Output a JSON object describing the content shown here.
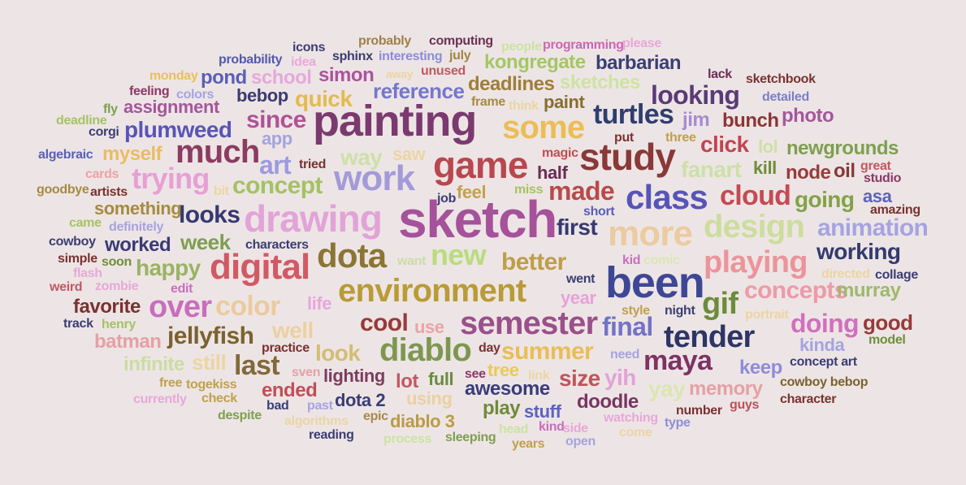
{
  "cloud": {
    "words": [
      {
        "text": "sketch",
        "color": "#a5529a"
      },
      {
        "text": "painting",
        "color": "#7b3a6f"
      },
      {
        "text": "been",
        "color": "#3e4795"
      },
      {
        "text": "study",
        "color": "#8a3838"
      },
      {
        "text": "drawing",
        "color": "#e2a3d8"
      },
      {
        "text": "game",
        "color": "#b9474f"
      },
      {
        "text": "work",
        "color": "#a39ad9"
      },
      {
        "text": "much",
        "color": "#8c3b61"
      },
      {
        "text": "more",
        "color": "#ebcba0"
      },
      {
        "text": "design",
        "color": "#cddd9c"
      },
      {
        "text": "environment",
        "color": "#b99b37"
      },
      {
        "text": "digital",
        "color": "#d25964"
      },
      {
        "text": "dota",
        "color": "#8b7535"
      },
      {
        "text": "class",
        "color": "#5754b9"
      },
      {
        "text": "semester",
        "color": "#9b4f8b"
      },
      {
        "text": "some",
        "color": "#ebbd55"
      },
      {
        "text": "made",
        "color": "#b74b4b"
      },
      {
        "text": "playing",
        "color": "#ec949b"
      },
      {
        "text": "tender",
        "color": "#2d3565"
      },
      {
        "text": "diablo",
        "color": "#7e9750"
      },
      {
        "text": "gif",
        "color": "#6b8c3c"
      },
      {
        "text": "new",
        "color": "#b9dc7d"
      },
      {
        "text": "over",
        "color": "#c86ebd"
      },
      {
        "text": "color",
        "color": "#ebcaa0"
      },
      {
        "text": "maya",
        "color": "#7e3263"
      },
      {
        "text": "cloud",
        "color": "#c54a54"
      },
      {
        "text": "trying",
        "color": "#e79fd5"
      },
      {
        "text": "turtles",
        "color": "#2f3e6f"
      },
      {
        "text": "looking",
        "color": "#5a3a78"
      },
      {
        "text": "summer",
        "color": "#e8be55"
      },
      {
        "text": "art",
        "color": "#9d9ae0"
      },
      {
        "text": "concept",
        "color": "#a3c264"
      },
      {
        "text": "last",
        "color": "#80693b"
      },
      {
        "text": "final",
        "color": "#7373c7"
      },
      {
        "text": "jellyfish",
        "color": "#7a6230"
      },
      {
        "text": "better",
        "color": "#c09d49"
      },
      {
        "text": "animation",
        "color": "#a6a3e1"
      },
      {
        "text": "concepts",
        "color": "#ed9aa9"
      },
      {
        "text": "going",
        "color": "#82a248"
      },
      {
        "text": "plumweed",
        "color": "#5954b7"
      },
      {
        "text": "looks",
        "color": "#363970"
      },
      {
        "text": "cool",
        "color": "#983a3a"
      },
      {
        "text": "doing",
        "color": "#d36fbe"
      },
      {
        "text": "quick",
        "color": "#e3ba50"
      },
      {
        "text": "since",
        "color": "#b05296"
      },
      {
        "text": "reference",
        "color": "#7477ca"
      },
      {
        "text": "first",
        "color": "#363870"
      },
      {
        "text": "size",
        "color": "#c0545b"
      },
      {
        "text": "fanart",
        "color": "#cde0a7"
      },
      {
        "text": "week",
        "color": "#7e9f51"
      },
      {
        "text": "happy",
        "color": "#9ab263"
      },
      {
        "text": "well",
        "color": "#ebd0a1"
      },
      {
        "text": "look",
        "color": "#d3bd72"
      },
      {
        "text": "working",
        "color": "#353a6e"
      },
      {
        "text": "newgrounds",
        "color": "#7e9f51"
      },
      {
        "text": "murray",
        "color": "#9cba6a"
      },
      {
        "text": "bunch",
        "color": "#8b3636"
      },
      {
        "text": "photo",
        "color": "#a4579c"
      },
      {
        "text": "way",
        "color": "#cee0a7"
      },
      {
        "text": "memory",
        "color": "#e5a0a6"
      },
      {
        "text": "yih",
        "color": "#e2a2d8"
      },
      {
        "text": "good",
        "color": "#973a3a"
      },
      {
        "text": "infinite",
        "color": "#ccdca4"
      },
      {
        "text": "lighting",
        "color": "#7c3d61"
      },
      {
        "text": "tree",
        "color": "#ebc957"
      },
      {
        "text": "half",
        "color": "#6a2d55"
      },
      {
        "text": "year",
        "color": "#e8a0d9"
      },
      {
        "text": "yay",
        "color": "#dbe6b1"
      },
      {
        "text": "doodle",
        "color": "#7a3463"
      },
      {
        "text": "awesome",
        "color": "#3a3d7a"
      },
      {
        "text": "still",
        "color": "#ebd5a4"
      },
      {
        "text": "sketches",
        "color": "#cde4a1"
      },
      {
        "text": "deadlines",
        "color": "#9e7e3b"
      },
      {
        "text": "barbarian",
        "color": "#3a3f75"
      },
      {
        "text": "school",
        "color": "#e5a8dc"
      },
      {
        "text": "click",
        "color": "#bf4552"
      },
      {
        "text": "something",
        "color": "#a58a44"
      },
      {
        "text": "favorite",
        "color": "#7b3131"
      },
      {
        "text": "kongregate",
        "color": "#a5c664"
      },
      {
        "text": "simon",
        "color": "#ae529e"
      },
      {
        "text": "pond",
        "color": "#5a5fb7"
      },
      {
        "text": "assignment",
        "color": "#a4579c"
      },
      {
        "text": "myself",
        "color": "#eabc63"
      },
      {
        "text": "worked",
        "color": "#3a3b74"
      },
      {
        "text": "batman",
        "color": "#e5a0a6"
      },
      {
        "text": "bebop",
        "color": "#3c3a70"
      },
      {
        "text": "paint",
        "color": "#8a6d30"
      },
      {
        "text": "jim",
        "color": "#a68cd1"
      },
      {
        "text": "kill",
        "color": "#6e8f3c"
      },
      {
        "text": "node",
        "color": "#983c3c"
      },
      {
        "text": "oil",
        "color": "#873838"
      },
      {
        "text": "asa",
        "color": "#5d62b8"
      },
      {
        "text": "kinda",
        "color": "#a6a3e1"
      },
      {
        "text": "keep",
        "color": "#8f8bda"
      },
      {
        "text": "dota 2",
        "color": "#3a3d75"
      },
      {
        "text": "diablo 3",
        "color": "#bb9b47"
      },
      {
        "text": "lot",
        "color": "#c05863"
      },
      {
        "text": "full",
        "color": "#6c8c3f"
      },
      {
        "text": "ended",
        "color": "#c24e57"
      },
      {
        "text": "using",
        "color": "#ebd0a1"
      },
      {
        "text": "play",
        "color": "#6f8a3d"
      },
      {
        "text": "stuff",
        "color": "#5d63bd"
      },
      {
        "text": "use",
        "color": "#eba3a6"
      },
      {
        "text": "feel",
        "color": "#c2a24e"
      },
      {
        "text": "saw",
        "color": "#ebd5a4"
      },
      {
        "text": "app",
        "color": "#a5a2e0"
      },
      {
        "text": "lol",
        "color": "#cde0a3"
      },
      {
        "text": "life",
        "color": "#e8a5dc"
      },
      {
        "text": "probably",
        "color": "#9f8047"
      },
      {
        "text": "computing",
        "color": "#6b2f55"
      },
      {
        "text": "icons",
        "color": "#3c3d75"
      },
      {
        "text": "people",
        "color": "#cce2a3"
      },
      {
        "text": "programming",
        "color": "#d064b5"
      },
      {
        "text": "please",
        "color": "#e8a7d9"
      },
      {
        "text": "probability",
        "color": "#5158b0"
      },
      {
        "text": "idea",
        "color": "#e9a8dc"
      },
      {
        "text": "sphinx",
        "color": "#3a3d75"
      },
      {
        "text": "interesting",
        "color": "#8c8cd8"
      },
      {
        "text": "july",
        "color": "#a08544"
      },
      {
        "text": "monday",
        "color": "#e8c060"
      },
      {
        "text": "away",
        "color": "#ebd5a4"
      },
      {
        "text": "unused",
        "color": "#c05863"
      },
      {
        "text": "lack",
        "color": "#6b2d55"
      },
      {
        "text": "sketchbook",
        "color": "#7b3131"
      },
      {
        "text": "feeling",
        "color": "#8c3868"
      },
      {
        "text": "colors",
        "color": "#a6a3e1"
      },
      {
        "text": "frame",
        "color": "#a68a44"
      },
      {
        "text": "think",
        "color": "#ebd5a4"
      },
      {
        "text": "detailed",
        "color": "#7b7ec8"
      },
      {
        "text": "fly",
        "color": "#7e9f51"
      },
      {
        "text": "deadline",
        "color": "#a6c264"
      },
      {
        "text": "corgi",
        "color": "#3c3d75"
      },
      {
        "text": "put",
        "color": "#7b3131"
      },
      {
        "text": "three",
        "color": "#c0a04e"
      },
      {
        "text": "algebraic",
        "color": "#5a5fb7"
      },
      {
        "text": "magic",
        "color": "#c54a54"
      },
      {
        "text": "great",
        "color": "#c05863"
      },
      {
        "text": "studio",
        "color": "#8c3868"
      },
      {
        "text": "cards",
        "color": "#eba3a6"
      },
      {
        "text": "tried",
        "color": "#7b3131"
      },
      {
        "text": "goodbye",
        "color": "#a68a44"
      },
      {
        "text": "artists",
        "color": "#7b3131"
      },
      {
        "text": "bit",
        "color": "#ebd5a4"
      },
      {
        "text": "job",
        "color": "#3c3d75"
      },
      {
        "text": "miss",
        "color": "#a6c264"
      },
      {
        "text": "short",
        "color": "#5a5fb7"
      },
      {
        "text": "amazing",
        "color": "#7b3131"
      },
      {
        "text": "came",
        "color": "#a6c264"
      },
      {
        "text": "definitely",
        "color": "#a6a3e1"
      },
      {
        "text": "cowboy",
        "color": "#3c3d75"
      },
      {
        "text": "characters",
        "color": "#3c3d75"
      },
      {
        "text": "simple",
        "color": "#7b3131"
      },
      {
        "text": "soon",
        "color": "#6e8f3c"
      },
      {
        "text": "want",
        "color": "#ccdca4"
      },
      {
        "text": "kid",
        "color": "#c86ebd"
      },
      {
        "text": "comic",
        "color": "#dbe6b1"
      },
      {
        "text": "collage",
        "color": "#3c3d75"
      },
      {
        "text": "flash",
        "color": "#e8a7d9"
      },
      {
        "text": "went",
        "color": "#3c3d75"
      },
      {
        "text": "directed",
        "color": "#ebd5a4"
      },
      {
        "text": "weird",
        "color": "#c05863"
      },
      {
        "text": "zombie",
        "color": "#e8a7d9"
      },
      {
        "text": "edit",
        "color": "#c86ebd"
      },
      {
        "text": "night",
        "color": "#3c3d75"
      },
      {
        "text": "style",
        "color": "#c0a04e"
      },
      {
        "text": "portrait",
        "color": "#ebd5a4"
      },
      {
        "text": "track",
        "color": "#3c3d75"
      },
      {
        "text": "henry",
        "color": "#a6c264"
      },
      {
        "text": "model",
        "color": "#6e8f3c"
      },
      {
        "text": "practice",
        "color": "#7b3131"
      },
      {
        "text": "day",
        "color": "#7b3131"
      },
      {
        "text": "need",
        "color": "#a6a3e1"
      },
      {
        "text": "sven",
        "color": "#e5a0a6"
      },
      {
        "text": "see",
        "color": "#8c3868"
      },
      {
        "text": "link",
        "color": "#ebd5a4"
      },
      {
        "text": "concept art",
        "color": "#3c3d75"
      },
      {
        "text": "free",
        "color": "#c0a04e"
      },
      {
        "text": "togekiss",
        "color": "#c0a04e"
      },
      {
        "text": "cowboy bebop",
        "color": "#7b6230"
      },
      {
        "text": "currently",
        "color": "#e8a7d9"
      },
      {
        "text": "check",
        "color": "#c0a04e"
      },
      {
        "text": "character",
        "color": "#7b3131"
      },
      {
        "text": "bad",
        "color": "#3c3d75"
      },
      {
        "text": "past",
        "color": "#a6a3e1"
      },
      {
        "text": "guys",
        "color": "#c24e57"
      },
      {
        "text": "number",
        "color": "#7b3131"
      },
      {
        "text": "despite",
        "color": "#7e9f51"
      },
      {
        "text": "algorithms",
        "color": "#ebd5a4"
      },
      {
        "text": "epic",
        "color": "#a68a44"
      },
      {
        "text": "watching",
        "color": "#e8a7d9"
      },
      {
        "text": "type",
        "color": "#8f8bda"
      },
      {
        "text": "head",
        "color": "#cce2a3"
      },
      {
        "text": "kind",
        "color": "#c86ebd"
      },
      {
        "text": "side",
        "color": "#e8a7d9"
      },
      {
        "text": "come",
        "color": "#ebd5a4"
      },
      {
        "text": "reading",
        "color": "#3c3d75"
      },
      {
        "text": "process",
        "color": "#cce2a3"
      },
      {
        "text": "sleeping",
        "color": "#7e9f51"
      },
      {
        "text": "years",
        "color": "#c0a04e"
      },
      {
        "text": "open",
        "color": "#a6a3e1"
      }
    ]
  }
}
